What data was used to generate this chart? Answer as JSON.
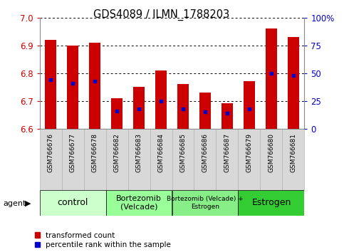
{
  "title": "GDS4089 / ILMN_1788203",
  "samples": [
    "GSM766676",
    "GSM766677",
    "GSM766678",
    "GSM766682",
    "GSM766683",
    "GSM766684",
    "GSM766685",
    "GSM766686",
    "GSM766687",
    "GSM766679",
    "GSM766680",
    "GSM766681"
  ],
  "transformed_count": [
    6.92,
    6.9,
    6.91,
    6.71,
    6.75,
    6.81,
    6.76,
    6.73,
    6.69,
    6.77,
    6.96,
    6.93
  ],
  "percentile_rank": [
    44,
    41,
    43,
    16,
    18,
    25,
    18,
    15,
    14,
    18,
    50,
    48
  ],
  "ylim_left": [
    6.6,
    7.0
  ],
  "ylim_right": [
    0,
    100
  ],
  "yticks_left": [
    6.6,
    6.7,
    6.8,
    6.9,
    7.0
  ],
  "yticks_right": [
    0,
    25,
    50,
    75,
    100
  ],
  "ytick_labels_right": [
    "0",
    "25",
    "50",
    "75",
    "100%"
  ],
  "bar_bottom": 6.6,
  "bar_color": "#cc0000",
  "dot_color": "#0000cc",
  "groups": [
    {
      "label": "control",
      "indices": [
        0,
        1,
        2
      ],
      "color": "#ccffcc",
      "fontsize": 9
    },
    {
      "label": "Bortezomib\n(Velcade)",
      "indices": [
        3,
        4,
        5
      ],
      "color": "#99ff99",
      "fontsize": 8
    },
    {
      "label": "Bortezomib (Velcade) +\nEstrogen",
      "indices": [
        6,
        7,
        8
      ],
      "color": "#88ee88",
      "fontsize": 6.5
    },
    {
      "label": "Estrogen",
      "indices": [
        9,
        10,
        11
      ],
      "color": "#33cc33",
      "fontsize": 9
    }
  ],
  "legend_items": [
    {
      "label": "transformed count",
      "color": "#cc0000"
    },
    {
      "label": "percentile rank within the sample",
      "color": "#0000cc"
    }
  ],
  "agent_label": "agent",
  "tick_color_left": "#cc0000",
  "tick_color_right": "#0000cc",
  "ticklabel_bg": "#d8d8d8"
}
